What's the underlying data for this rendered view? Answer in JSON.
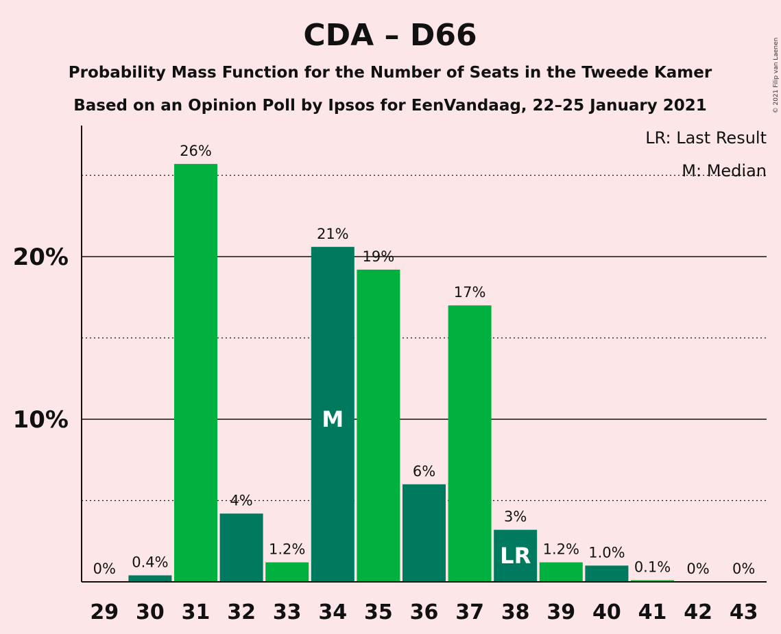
{
  "chart_data": {
    "type": "bar",
    "title": "CDA – D66",
    "subtitle_lines": [
      "Probability Mass Function for the Number of Seats in the Tweede Kamer",
      "Based on an Opinion Poll by Ipsos for EenVandaag, 22–25 January 2021"
    ],
    "copyright": "© 2021 Filip van Laenen",
    "legend": [
      "LR: Last Result",
      "M: Median"
    ],
    "legend_placement": "top-right",
    "categories": [
      "29",
      "30",
      "31",
      "32",
      "33",
      "34",
      "35",
      "36",
      "37",
      "38",
      "39",
      "40",
      "41",
      "42",
      "43"
    ],
    "values": [
      0,
      0.4,
      25.7,
      4.2,
      1.2,
      20.6,
      19.2,
      6.0,
      17.0,
      3.2,
      1.2,
      1.0,
      0.1,
      0,
      0
    ],
    "labels": [
      "0%",
      "0.4%",
      "26%",
      "4%",
      "1.2%",
      "21%",
      "19%",
      "6%",
      "17%",
      "3%",
      "1.2%",
      "1.0%",
      "0.1%",
      "0%",
      "0%"
    ],
    "bar_colors": [
      "#00b140",
      "#007a5e",
      "#00b140",
      "#007a5e",
      "#00b140",
      "#007a5e",
      "#00b140",
      "#007a5e",
      "#00b140",
      "#007a5e",
      "#00b140",
      "#007a5e",
      "#00b140",
      "#007a5e",
      "#00b140"
    ],
    "median": {
      "category": "34",
      "label": "M"
    },
    "last_result": {
      "category": "38",
      "label": "LR"
    },
    "yticks": [
      {
        "value": 10,
        "label": "10%"
      },
      {
        "value": 20,
        "label": "20%"
      }
    ],
    "minor_gridlines": [
      5,
      15,
      25
    ],
    "ylim": [
      0,
      28
    ]
  }
}
